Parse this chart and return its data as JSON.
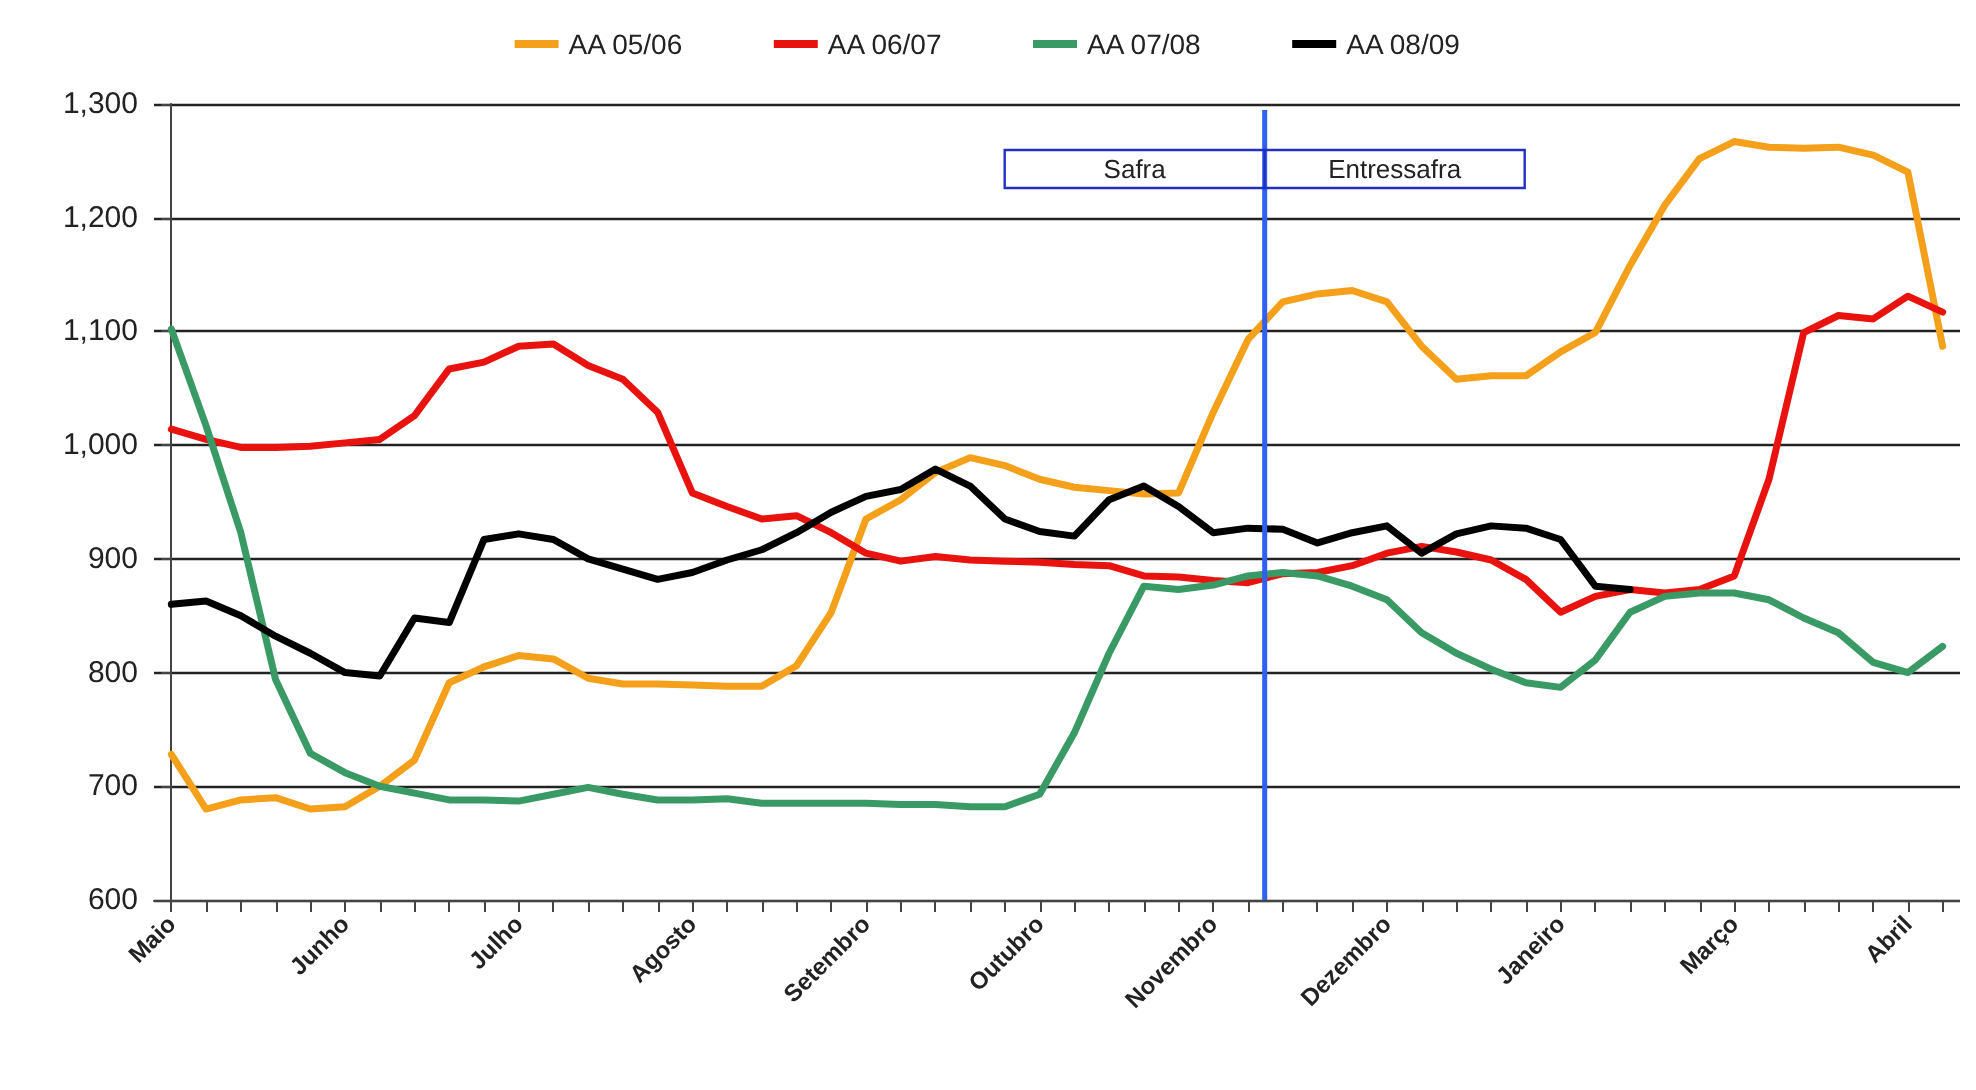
{
  "chart_data": {
    "type": "line",
    "legend": "top",
    "grid": "y",
    "marker": "none",
    "line_style": "solid",
    "categories": [
      "Maio",
      null,
      null,
      null,
      null,
      "Junho",
      null,
      null,
      null,
      null,
      "Julho",
      null,
      null,
      null,
      null,
      "Agosto",
      null,
      null,
      null,
      null,
      "Setembro",
      null,
      null,
      null,
      null,
      "Outubro",
      null,
      null,
      null,
      null,
      "Novembro",
      null,
      null,
      null,
      null,
      "Dezembro",
      null,
      null,
      null,
      null,
      "Janeiro",
      null,
      null,
      null,
      null,
      "Março",
      null,
      null,
      null,
      null,
      "Abril",
      null
    ],
    "ylim": [
      600,
      1300
    ],
    "yticks": [
      600,
      700,
      800,
      900,
      {
        "value": 1000,
        "label": "1,000"
      },
      {
        "value": 1100,
        "label": "1,100"
      },
      {
        "value": 1200,
        "label": "1,200"
      },
      {
        "value": 1300,
        "label": "1,300"
      }
    ],
    "annotations": [
      "Safra",
      "Entressafra"
    ],
    "series": [
      {
        "name": "AA 05/06",
        "color": "#f5a01a",
        "values": [
          728,
          680,
          688,
          690,
          680,
          682,
          700,
          723,
          791,
          805,
          815,
          812,
          795,
          790,
          790,
          789,
          788,
          788,
          806,
          853,
          935,
          952,
          976,
          989,
          982,
          970,
          963,
          960,
          957,
          958,
          1029,
          1093,
          1126,
          1133,
          1136,
          1126,
          1087,
          1058,
          1061,
          1061,
          1082,
          1099,
          1158,
          1211,
          1252,
          1267,
          1262,
          1261,
          1262,
          1255,
          1240,
          1087
        ]
      },
      {
        "name": "AA 06/07",
        "color": "#e8130f",
        "values": [
          1014,
          1005,
          998,
          998,
          999,
          1002,
          1005,
          1026,
          1067,
          1073,
          1087,
          1089,
          1070,
          1058,
          1029,
          958,
          946,
          935,
          938,
          923,
          905,
          898,
          902,
          899,
          898,
          897,
          895,
          894,
          885,
          884,
          881,
          879,
          887,
          888,
          894,
          905,
          911,
          906,
          899,
          882,
          853,
          867,
          873,
          870,
          873,
          885,
          970,
          1099,
          1114,
          1111,
          1131,
          1117
        ]
      },
      {
        "name": "AA 07/08",
        "color": "#3a9a66",
        "values": [
          1102,
          1017,
          923,
          794,
          729,
          712,
          700,
          694,
          688,
          688,
          687,
          693,
          699,
          693,
          688,
          688,
          689,
          685,
          685,
          685,
          685,
          684,
          684,
          682,
          682,
          693,
          747,
          817,
          876,
          873,
          877,
          885,
          888,
          885,
          876,
          864,
          835,
          817,
          803,
          791,
          787,
          811,
          853,
          867,
          870,
          870,
          864,
          848,
          835,
          809,
          800,
          823
        ]
      },
      {
        "name": "AA 08/09",
        "color": "#000000",
        "values": [
          860,
          863,
          850,
          832,
          817,
          800,
          797,
          848,
          844,
          917,
          922,
          917,
          900,
          891,
          882,
          888,
          899,
          908,
          923,
          941,
          955,
          961,
          979,
          964,
          935,
          924,
          920,
          952,
          964,
          946,
          923,
          927,
          926,
          914,
          923,
          929,
          905,
          922,
          929,
          927,
          917,
          876,
          873,
          null,
          null,
          null,
          null,
          null,
          null,
          null,
          null,
          null
        ]
      }
    ]
  }
}
